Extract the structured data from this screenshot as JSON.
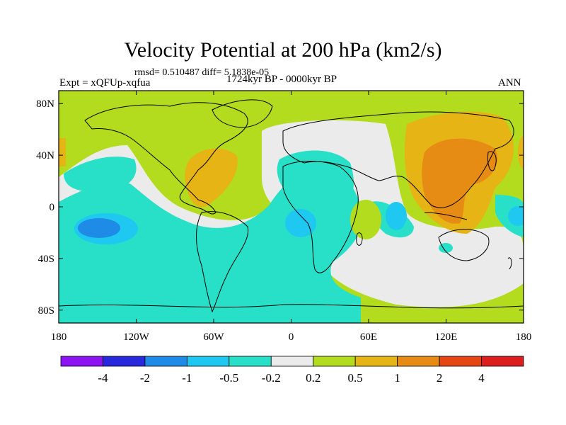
{
  "title": "Velocity Potential at 200 hPa (km2/s)",
  "stats": "rmsd= 0.510487 diff= 5.1838e-05",
  "left_label": "Expt = xQFUp-xqfua",
  "center_label": "1724kyr BP - 0000kyr BP",
  "right_label": "ANN",
  "lat_labels": [
    "80N",
    "40N",
    "0",
    "40S",
    "80S"
  ],
  "lat_values": [
    80,
    40,
    0,
    -40,
    -80
  ],
  "lon_labels": [
    "180",
    "120W",
    "60W",
    "0",
    "60E",
    "120E",
    "180"
  ],
  "lon_values": [
    -180,
    -120,
    -60,
    0,
    60,
    120,
    180
  ],
  "colorbar": {
    "colors": [
      "#8c14f0",
      "#2828dc",
      "#1e8ce6",
      "#1ec8f0",
      "#28e0c8",
      "#ebebeb",
      "#b4dc1e",
      "#e6b414",
      "#e68c14",
      "#e64614",
      "#dc1e1e"
    ],
    "labels": [
      "-4",
      "-2",
      "-1",
      "-0.5",
      "-0.2",
      "0.2",
      "0.5",
      "1",
      "2",
      "4"
    ]
  }
}
